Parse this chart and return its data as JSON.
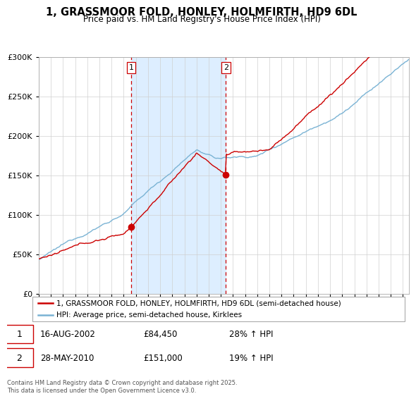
{
  "title": "1, GRASSMOOR FOLD, HONLEY, HOLMFIRTH, HD9 6DL",
  "subtitle": "Price paid vs. HM Land Registry's House Price Index (HPI)",
  "legend_line1": "1, GRASSMOOR FOLD, HONLEY, HOLMFIRTH, HD9 6DL (semi-detached house)",
  "legend_line2": "HPI: Average price, semi-detached house, Kirklees",
  "footer": "Contains HM Land Registry data © Crown copyright and database right 2025.\nThis data is licensed under the Open Government Licence v3.0.",
  "sale1_date": "16-AUG-2002",
  "sale1_price": 84450,
  "sale1_label": "28% ↑ HPI",
  "sale2_date": "28-MAY-2010",
  "sale2_price": 151000,
  "sale2_label": "19% ↑ HPI",
  "sale1_year": 2002.62,
  "sale2_year": 2010.41,
  "hpi_color": "#7ab3d4",
  "price_color": "#cc0000",
  "shade_color": "#ddeeff",
  "dashed_color": "#cc0000",
  "background_color": "#ffffff",
  "ylim": [
    0,
    300000
  ],
  "ytick_step": 50000,
  "xlim_start": 1995,
  "xlim_end": 2025.5
}
